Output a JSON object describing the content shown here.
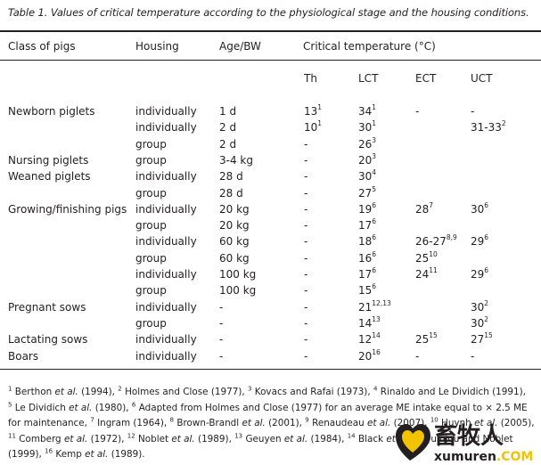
{
  "caption": "Table 1. Values of critical temperature according to the physiological stage and the housing conditions.",
  "headers": {
    "class": "Class of pigs",
    "housing": "Housing",
    "age": "Age/BW",
    "critical": "Critical temperature (°C)",
    "sub": [
      "Th",
      "LCT",
      "ECT",
      "UCT"
    ]
  },
  "rows": [
    {
      "cls": "Newborn piglets",
      "housing": "individually",
      "age": "1 d",
      "th": "13",
      "th_ref": "1",
      "lct": "34",
      "lct_ref": "1",
      "ect": "-",
      "ect_ref": "",
      "uct": "-",
      "uct_ref": ""
    },
    {
      "cls": "",
      "housing": "individually",
      "age": "2 d",
      "th": "10",
      "th_ref": "1",
      "lct": "30",
      "lct_ref": "1",
      "ect": "",
      "ect_ref": "",
      "uct": "31-33",
      "uct_ref": "2"
    },
    {
      "cls": "",
      "housing": "group",
      "age": "2 d",
      "th": "-",
      "th_ref": "",
      "lct": "26",
      "lct_ref": "3",
      "ect": "",
      "ect_ref": "",
      "uct": "",
      "uct_ref": ""
    },
    {
      "cls": "Nursing piglets",
      "housing": "group",
      "age": "3-4 kg",
      "th": "-",
      "th_ref": "",
      "lct": "20",
      "lct_ref": "3",
      "ect": "",
      "ect_ref": "",
      "uct": "",
      "uct_ref": ""
    },
    {
      "cls": "Weaned piglets",
      "housing": "individually",
      "age": "28 d",
      "th": "-",
      "th_ref": "",
      "lct": "30",
      "lct_ref": "4",
      "ect": "",
      "ect_ref": "",
      "uct": "",
      "uct_ref": ""
    },
    {
      "cls": "",
      "housing": "group",
      "age": "28 d",
      "th": "-",
      "th_ref": "",
      "lct": "27",
      "lct_ref": "5",
      "ect": "",
      "ect_ref": "",
      "uct": "",
      "uct_ref": ""
    },
    {
      "cls": "Growing/finishing pigs",
      "housing": "individually",
      "age": "20 kg",
      "th": "-",
      "th_ref": "",
      "lct": "19",
      "lct_ref": "6",
      "ect": "28",
      "ect_ref": "7",
      "uct": "30",
      "uct_ref": "6"
    },
    {
      "cls": "",
      "housing": "group",
      "age": "20 kg",
      "th": "-",
      "th_ref": "",
      "lct": "17",
      "lct_ref": "6",
      "ect": "",
      "ect_ref": "",
      "uct": "",
      "uct_ref": ""
    },
    {
      "cls": "",
      "housing": "individually",
      "age": "60 kg",
      "th": "-",
      "th_ref": "",
      "lct": "18",
      "lct_ref": "6",
      "ect": "26-27",
      "ect_ref": "8,9",
      "uct": "29",
      "uct_ref": "6"
    },
    {
      "cls": "",
      "housing": "group",
      "age": "60 kg",
      "th": "-",
      "th_ref": "",
      "lct": "16",
      "lct_ref": "6",
      "ect": "25",
      "ect_ref": "10",
      "uct": "",
      "uct_ref": ""
    },
    {
      "cls": "",
      "housing": "individually",
      "age": "100 kg",
      "th": "-",
      "th_ref": "",
      "lct": "17",
      "lct_ref": "6",
      "ect": "24",
      "ect_ref": "11",
      "uct": "29",
      "uct_ref": "6"
    },
    {
      "cls": "",
      "housing": "group",
      "age": "100 kg",
      "th": "-",
      "th_ref": "",
      "lct": "15",
      "lct_ref": "6",
      "ect": "",
      "ect_ref": "",
      "uct": "",
      "uct_ref": ""
    },
    {
      "cls": "Pregnant sows",
      "housing": "individually",
      "age": "-",
      "th": "-",
      "th_ref": "",
      "lct": "21",
      "lct_ref": "12,13",
      "ect": "",
      "ect_ref": "",
      "uct": "30",
      "uct_ref": "2"
    },
    {
      "cls": "",
      "housing": "group",
      "age": "-",
      "th": "-",
      "th_ref": "",
      "lct": "14",
      "lct_ref": "13",
      "ect": "",
      "ect_ref": "",
      "uct": "30",
      "uct_ref": "2"
    },
    {
      "cls": "Lactating sows",
      "housing": "individually",
      "age": "-",
      "th": "-",
      "th_ref": "",
      "lct": "12",
      "lct_ref": "14",
      "ect": "25",
      "ect_ref": "15",
      "uct": "27",
      "uct_ref": "15"
    },
    {
      "cls": "Boars",
      "housing": "individually",
      "age": "-",
      "th": "-",
      "th_ref": "",
      "lct": "20",
      "lct_ref": "16",
      "ect": "-",
      "ect_ref": "",
      "uct": "-",
      "uct_ref": ""
    }
  ],
  "footnotes": [
    {
      "n": "1",
      "pre": "Berthon ",
      "em": "et al.",
      "post": " (1994),"
    },
    {
      "n": "2",
      "pre": "Holmes and Close (1977),",
      "em": "",
      "post": ""
    },
    {
      "n": "3",
      "pre": "Kovacs and Rafai (1973),",
      "em": "",
      "post": ""
    },
    {
      "n": "4",
      "pre": "Rinaldo and Le Dividich (1991),",
      "em": "",
      "post": ""
    },
    {
      "n": "5",
      "pre": "Le Dividich ",
      "em": "et al.",
      "post": " (1980),"
    },
    {
      "n": "6",
      "pre": "Adapted from Holmes and Close (1977) for an average ME intake equal to × 2.5 ME for maintenance,",
      "em": "",
      "post": ""
    },
    {
      "n": "7",
      "pre": "Ingram (1964),",
      "em": "",
      "post": ""
    },
    {
      "n": "8",
      "pre": "Brown-Brandl ",
      "em": "et al.",
      "post": " (2001),"
    },
    {
      "n": "9",
      "pre": "Renaudeau ",
      "em": "et al.",
      "post": " (2007),"
    },
    {
      "n": "10",
      "pre": "Huynh ",
      "em": "et al.",
      "post": " (2005),"
    },
    {
      "n": "11",
      "pre": "Comberg ",
      "em": "et al.",
      "post": " (1972),"
    },
    {
      "n": "12",
      "pre": "Noblet ",
      "em": "et al.",
      "post": " (1989),"
    },
    {
      "n": "13",
      "pre": "Geuyen ",
      "em": "et al.",
      "post": " (1984),"
    },
    {
      "n": "14",
      "pre": "Black ",
      "em": "et al.",
      "post": ""
    },
    {
      "n": "15",
      "pre": "Quiniou and Noblet (1999),",
      "em": "",
      "post": ""
    },
    {
      "n": "16",
      "pre": "Kemp ",
      "em": "et al.",
      "post": " (1989)."
    }
  ],
  "watermark": {
    "brand": "畜牧人",
    "domain": "xumuren",
    "tld": ".COM",
    "color": "#f2c300"
  }
}
